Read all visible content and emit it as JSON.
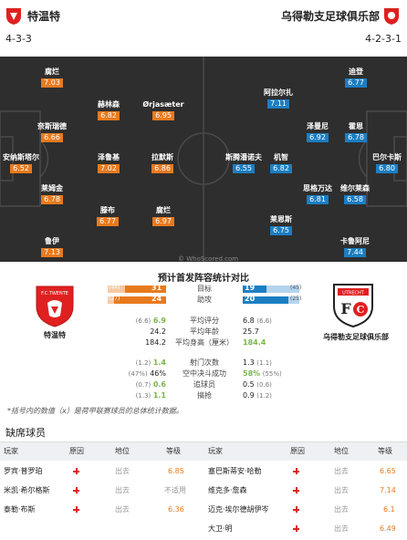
{
  "home": {
    "name": "特温特",
    "formation": "4-3-3",
    "color": "#e02020"
  },
  "away": {
    "name": "乌得勒支足球俱乐部",
    "formation": "4-2-3-1",
    "color": "#e02020"
  },
  "watermark": "© WhoScored.com",
  "players_home": [
    {
      "name": "腐烂",
      "rating": "7.03"
    },
    {
      "name": "赫林森",
      "rating": "6.82"
    },
    {
      "name": "Ørjasæter",
      "rating": "6.95"
    },
    {
      "name": "奈斯瑞德",
      "rating": "6.66"
    },
    {
      "name": "安纳斯塔尔",
      "rating": "6.52"
    },
    {
      "name": "泽鲁基",
      "rating": "7.02"
    },
    {
      "name": "拉默斯",
      "rating": "6.86"
    },
    {
      "name": "莱姆金",
      "rating": "6.78"
    },
    {
      "name": "滕布",
      "rating": "6.77"
    },
    {
      "name": "腐烂",
      "rating": "6.97"
    },
    {
      "name": "鲁伊",
      "rating": "7.13"
    }
  ],
  "players_away": [
    {
      "name": "迪登",
      "rating": "6.77"
    },
    {
      "name": "阿拉尔扎",
      "rating": "7.11"
    },
    {
      "name": "泽曼尼",
      "rating": "6.92"
    },
    {
      "name": "霍恩",
      "rating": "6.78"
    },
    {
      "name": "巴尔卡斯",
      "rating": "6.80"
    },
    {
      "name": "斯腾潘诺夫",
      "rating": "6.55"
    },
    {
      "name": "机智",
      "rating": "6.82"
    },
    {
      "name": "思格万达",
      "rating": "6.81"
    },
    {
      "name": "维尔莱森",
      "rating": "6.58"
    },
    {
      "name": "莱恩斯",
      "rating": "6.75"
    },
    {
      "name": "卡鲁阿尼",
      "rating": "7.44"
    }
  ],
  "stats": {
    "title": "预计首发阵容统计对比",
    "goals": {
      "label": "目标",
      "home_sm": "(44)",
      "home": "31",
      "away": "19",
      "away_sm": "(45)",
      "home_frac": 0.7,
      "away_frac": 0.42
    },
    "assists": {
      "label": "助攻",
      "home_sm": "(27)",
      "home": "24",
      "away": "20",
      "away_sm": "(25)",
      "home_frac": 0.89,
      "away_frac": 0.8
    },
    "rows": [
      {
        "label": "平均评分",
        "home_sm": "(6.6)",
        "home": "6.9",
        "away": "6.8",
        "away_sm": "(6.6)"
      },
      {
        "label": "平均年龄",
        "home_sm": "",
        "home": "24.2",
        "away": "25.7",
        "away_sm": ""
      },
      {
        "label": "平均身高（厘米）",
        "home_sm": "",
        "home": "184.2",
        "away": "184.4",
        "away_sm": ""
      },
      {
        "label": "射门次数",
        "home_sm": "(1.2)",
        "home": "1.4",
        "away": "1.3",
        "away_sm": "(1.1)"
      },
      {
        "label": "空中决斗成功",
        "home_sm": "(47%)",
        "home": "46%",
        "away": "58%",
        "away_sm": "(55%)"
      },
      {
        "label": "追球员",
        "home_sm": "(0.7)",
        "home": "0.6",
        "away": "0.5",
        "away_sm": "(0.6)"
      },
      {
        "label": "搞抢",
        "home_sm": "(1.3)",
        "home": "1.1",
        "away": "0.9",
        "away_sm": "(1.2)"
      }
    ]
  },
  "note": "*括号内的数值（x）是荷甲联赛球员的总体统计数据。",
  "missing": {
    "title": "缺席球员",
    "headers": {
      "player": "玩家",
      "reason": "原因",
      "position": "地位",
      "level": "等级"
    },
    "home": [
      {
        "player": "罗宾·普罗珀",
        "position": "出去",
        "level": "6.85"
      },
      {
        "player": "米凯·希尔格斯",
        "position": "出去",
        "level": "不适用"
      },
      {
        "player": "泰勒·布斯",
        "position": "出去",
        "level": "6.36"
      }
    ],
    "away": [
      {
        "player": "塞巴斯蒂安·哈勒",
        "position": "出去",
        "level": "6.65"
      },
      {
        "player": "维克多·詹森",
        "position": "出去",
        "level": "7.14"
      },
      {
        "player": "迈克·埃尔德胡伊岑",
        "position": "出去",
        "level": "6.1"
      },
      {
        "player": "大卫·明",
        "position": "出去",
        "level": "6.49"
      }
    ]
  }
}
